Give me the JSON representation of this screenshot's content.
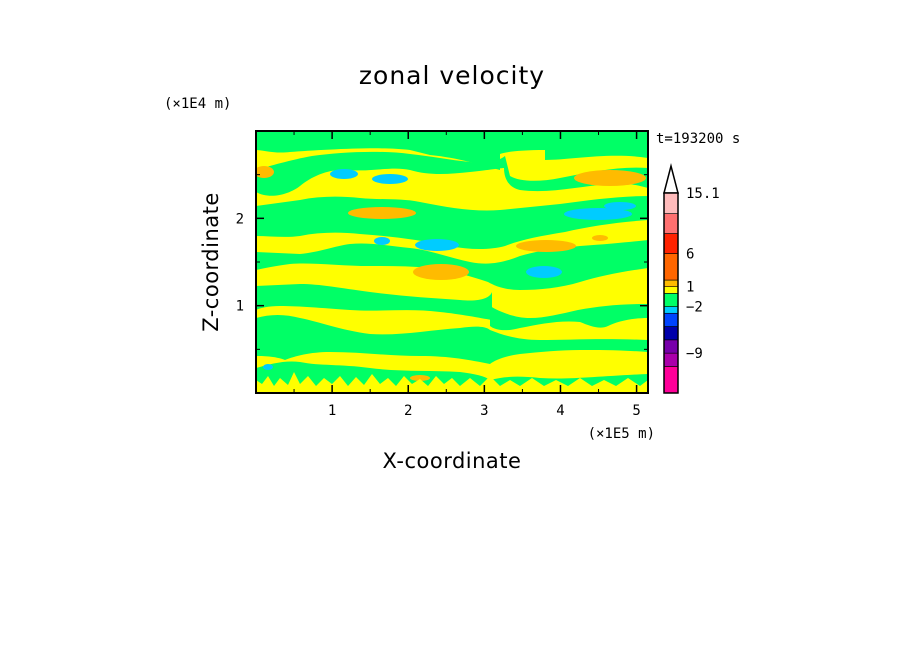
{
  "chart_data": {
    "type": "heatmap",
    "title": "zonal velocity",
    "xlabel": "X-coordinate",
    "ylabel": "Z-coordinate",
    "x_unit": "(×1E5 m)",
    "y_unit": "(×1E4 m)",
    "time_label": "t=193200 s",
    "xlim": [
      0,
      5.15
    ],
    "ylim": [
      0,
      3.0
    ],
    "x_ticks": [
      "1",
      "2",
      "3",
      "4",
      "5"
    ],
    "x_tick_values": [
      1,
      2,
      3,
      4,
      5
    ],
    "y_ticks": [
      "1",
      "2"
    ],
    "y_tick_values": [
      1,
      2
    ],
    "colorbar": {
      "labels": [
        "15.1",
        "6",
        "1",
        "−2",
        "−9"
      ],
      "label_values": [
        15.1,
        6,
        1,
        -2,
        -9
      ],
      "levels": [
        {
          "color": "#ff0099",
          "range": [
            -15,
            -11
          ]
        },
        {
          "color": "#aa00aa",
          "range": [
            -11,
            -9
          ]
        },
        {
          "color": "#7700aa",
          "range": [
            -9,
            -7
          ]
        },
        {
          "color": "#0000aa",
          "range": [
            -7,
            -5
          ]
        },
        {
          "color": "#0044ff",
          "range": [
            -5,
            -3
          ]
        },
        {
          "color": "#00ccff",
          "range": [
            -3,
            -2
          ]
        },
        {
          "color": "#00ff66",
          "range": [
            -2,
            0
          ]
        },
        {
          "color": "#ffff00",
          "range": [
            0,
            1
          ]
        },
        {
          "color": "#ffbb00",
          "range": [
            1,
            2
          ]
        },
        {
          "color": "#ff6600",
          "range": [
            2,
            6
          ]
        },
        {
          "color": "#ff2200",
          "range": [
            6,
            9
          ]
        },
        {
          "color": "#ff7070",
          "range": [
            9,
            12
          ]
        },
        {
          "color": "#ffbbbb",
          "range": [
            12,
            15.1
          ]
        }
      ]
    },
    "field_colors": {
      "green": "#00ff66",
      "yellow": "#ffff00",
      "orange": "#ffbb00",
      "cyan": "#00ccff"
    }
  }
}
